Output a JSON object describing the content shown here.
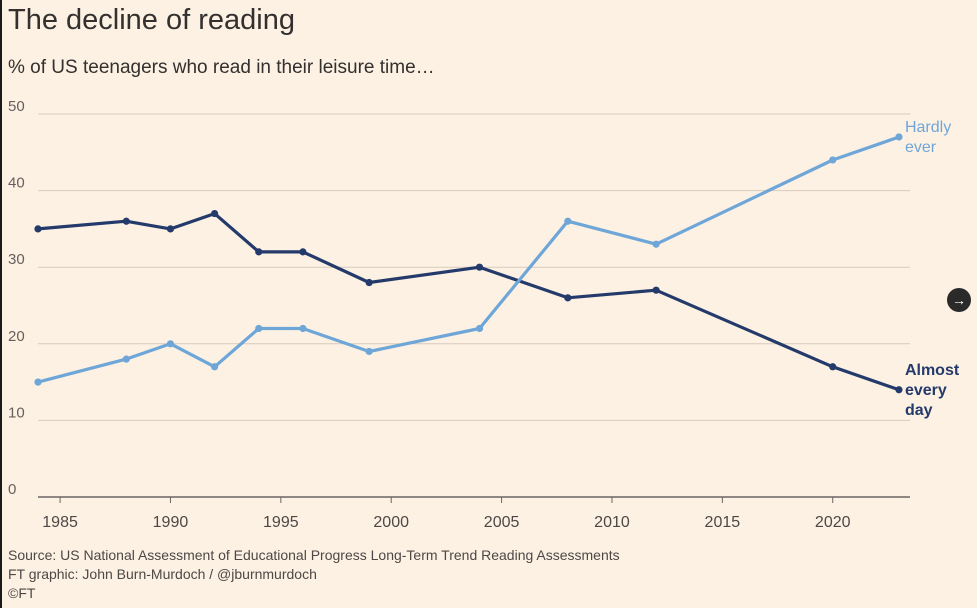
{
  "title": "The decline of reading",
  "subtitle": "% of US teenagers who read in their leisure time…",
  "footer": {
    "source": "Source: US National Assessment of Educational Progress Long-Term Trend Reading Assessments",
    "credit": "FT graphic: John Burn-Murdoch / @jburnmurdoch",
    "copyright": "©FT"
  },
  "nav": {
    "icon": "arrow-right-icon",
    "glyph": "→"
  },
  "chart_data": {
    "type": "line",
    "title": "The decline of reading",
    "subtitle": "% of US teenagers who read in their leisure time…",
    "xlabel": "",
    "ylabel": "",
    "xlim": [
      1984,
      2023.5
    ],
    "ylim": [
      0,
      50
    ],
    "xticks": [
      1985,
      1990,
      1995,
      2000,
      2005,
      2010,
      2015,
      2020
    ],
    "yticks": [
      0,
      10,
      20,
      30,
      40,
      50
    ],
    "grid": true,
    "series": [
      {
        "name": "Almost every day",
        "label_lines": [
          "Almost",
          "every",
          "day"
        ],
        "color": "#233a6b",
        "x": [
          1984,
          1988,
          1990,
          1992,
          1994,
          1996,
          1999,
          2004,
          2008,
          2012,
          2020,
          2023
        ],
        "y": [
          35,
          36,
          35,
          37,
          32,
          32,
          28,
          30,
          26,
          27,
          17,
          14
        ]
      },
      {
        "name": "Hardly ever",
        "label_lines": [
          "Hardly",
          "ever"
        ],
        "color": "#6ea6d8",
        "x": [
          1984,
          1988,
          1990,
          1992,
          1994,
          1996,
          1999,
          2004,
          2008,
          2012,
          2020,
          2023
        ],
        "y": [
          15,
          18,
          20,
          17,
          22,
          22,
          19,
          22,
          36,
          33,
          44,
          47
        ]
      }
    ]
  }
}
